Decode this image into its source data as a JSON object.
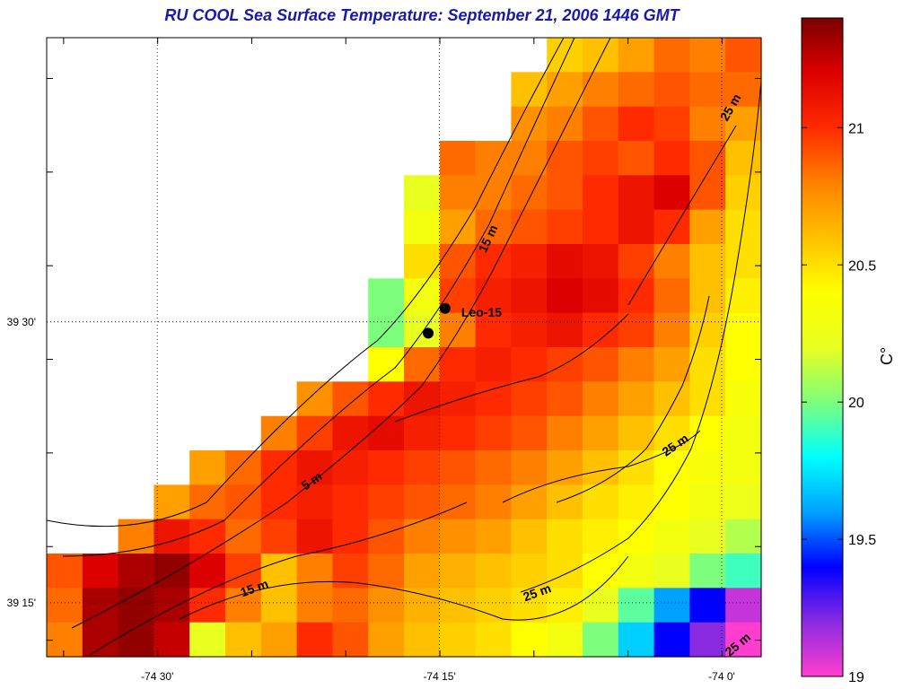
{
  "title": "RU COOL  Sea Surface Temperature:  September 21, 2006 1446 GMT",
  "colors": {
    "title": "#1a1aa8"
  },
  "chart_data": {
    "type": "heatmap",
    "title": "RU COOL  Sea Surface Temperature:  September 21, 2006 1446 GMT",
    "xlabel": "",
    "ylabel": "",
    "xlim": [
      -74.598,
      -73.965
    ],
    "ylim": [
      39.202,
      39.753
    ],
    "x_ticks": [
      {
        "value": -74.5,
        "label": "-74 30'"
      },
      {
        "value": -74.25,
        "label": "-74 15'"
      },
      {
        "value": -74.0,
        "label": "-74 0'"
      }
    ],
    "y_ticks": [
      {
        "value": 39.5,
        "label": "39 30'"
      },
      {
        "value": 39.25,
        "label": "39 15'"
      }
    ],
    "grid": "dotted at major ticks",
    "colorbar": {
      "label": "C°",
      "range": [
        19,
        21.4
      ],
      "ticks": [
        "19",
        "19.5",
        "20",
        "20.5",
        "21"
      ],
      "tick_values": [
        19,
        19.5,
        20,
        20.5,
        21
      ],
      "colormap": [
        "#ff3ecf",
        "#8a2be2",
        "#0000ff",
        "#00a2ff",
        "#00ffff",
        "#7dff7d",
        "#e8ff20",
        "#ffff00",
        "#ffc000",
        "#ff8000",
        "#ff2a00",
        "#dd0000",
        "#7a0000"
      ]
    },
    "sst_field": {
      "description": "Approximate gridded SST (deg C), 20 columns x 18 rows covering the map area; null = land/no data",
      "lon_edges": [
        -74.598,
        -73.965
      ],
      "lat_edges": [
        39.202,
        39.753
      ],
      "rows_north_to_south": [
        [
          null,
          null,
          null,
          null,
          null,
          null,
          null,
          null,
          null,
          null,
          null,
          null,
          null,
          null,
          20.55,
          20.6,
          20.7,
          20.85,
          20.8,
          20.9
        ],
        [
          null,
          null,
          null,
          null,
          null,
          null,
          null,
          null,
          null,
          null,
          null,
          null,
          null,
          20.6,
          20.7,
          20.8,
          20.85,
          20.9,
          20.85,
          20.85
        ],
        [
          null,
          null,
          null,
          null,
          null,
          null,
          null,
          null,
          null,
          null,
          null,
          null,
          null,
          20.75,
          20.8,
          20.9,
          21.0,
          20.95,
          20.8,
          20.7
        ],
        [
          null,
          null,
          null,
          null,
          null,
          null,
          null,
          null,
          null,
          null,
          null,
          20.85,
          20.8,
          20.8,
          20.9,
          20.95,
          20.9,
          21.0,
          20.9,
          20.6
        ],
        [
          null,
          null,
          null,
          null,
          null,
          null,
          null,
          null,
          null,
          null,
          20.2,
          20.8,
          20.8,
          20.85,
          20.9,
          21.0,
          21.1,
          21.2,
          20.9,
          20.55
        ],
        [
          null,
          null,
          null,
          null,
          null,
          null,
          null,
          null,
          null,
          null,
          20.3,
          20.7,
          20.85,
          20.9,
          20.95,
          21.0,
          21.1,
          21.0,
          20.7,
          20.5
        ],
        [
          null,
          null,
          null,
          null,
          null,
          null,
          null,
          null,
          null,
          null,
          20.5,
          20.9,
          21.0,
          21.05,
          21.15,
          21.1,
          20.95,
          20.8,
          20.6,
          20.5
        ],
        [
          null,
          null,
          null,
          null,
          null,
          null,
          null,
          null,
          null,
          20.0,
          20.3,
          20.95,
          21.05,
          21.1,
          21.2,
          21.15,
          21.0,
          20.85,
          20.6,
          20.45
        ],
        [
          null,
          null,
          null,
          null,
          null,
          null,
          null,
          null,
          null,
          20.0,
          20.2,
          20.8,
          21.0,
          21.05,
          21.1,
          21.0,
          20.95,
          20.8,
          20.55,
          20.4
        ],
        [
          null,
          null,
          null,
          null,
          null,
          null,
          null,
          null,
          null,
          20.4,
          20.85,
          21.0,
          21.05,
          21.0,
          20.95,
          20.9,
          20.8,
          20.7,
          20.5,
          20.4
        ],
        [
          null,
          null,
          null,
          null,
          null,
          null,
          null,
          20.75,
          20.9,
          21.0,
          21.1,
          21.05,
          21.0,
          20.95,
          20.9,
          20.8,
          20.7,
          20.6,
          20.5,
          20.35
        ],
        [
          null,
          null,
          null,
          null,
          null,
          null,
          20.8,
          20.95,
          21.1,
          21.15,
          21.05,
          21.0,
          20.95,
          20.9,
          20.8,
          20.7,
          20.6,
          20.5,
          20.4,
          20.3
        ],
        [
          null,
          null,
          null,
          null,
          20.7,
          20.85,
          21.0,
          21.1,
          21.05,
          21.0,
          20.95,
          20.9,
          20.85,
          20.8,
          20.7,
          20.6,
          20.5,
          20.4,
          20.35,
          20.3
        ],
        [
          null,
          null,
          null,
          20.7,
          20.85,
          20.9,
          21.0,
          21.05,
          21.0,
          20.95,
          20.9,
          20.85,
          20.8,
          20.7,
          20.6,
          20.5,
          20.45,
          20.4,
          20.3,
          20.25
        ],
        [
          null,
          null,
          20.8,
          21.1,
          21.0,
          20.85,
          20.95,
          21.1,
          21.0,
          20.9,
          20.8,
          20.75,
          20.7,
          20.6,
          20.5,
          20.45,
          20.4,
          20.3,
          20.2,
          20.1
        ],
        [
          20.9,
          21.2,
          21.3,
          21.35,
          21.2,
          20.95,
          20.6,
          20.8,
          20.95,
          20.85,
          20.7,
          20.65,
          20.6,
          20.55,
          20.5,
          20.4,
          20.3,
          20.2,
          20.0,
          19.9
        ],
        [
          20.85,
          21.3,
          21.35,
          21.3,
          21.0,
          20.8,
          20.6,
          20.8,
          20.85,
          20.75,
          20.65,
          20.6,
          20.55,
          20.5,
          20.45,
          20.2,
          19.95,
          19.6,
          19.4,
          19.1
        ],
        [
          20.8,
          21.3,
          21.35,
          21.25,
          20.2,
          20.6,
          20.7,
          21.0,
          20.9,
          20.7,
          20.6,
          20.55,
          20.5,
          20.4,
          20.3,
          20.0,
          19.7,
          19.4,
          19.2,
          19.0
        ]
      ]
    },
    "contour_labels": [
      "5 m",
      "15 m",
      "15 m",
      "25 m",
      "25 m",
      "25 m",
      "25 m"
    ],
    "station": {
      "label": "Leo-15",
      "points": [
        {
          "lon": -74.245,
          "lat": 39.512
        },
        {
          "lon": -74.26,
          "lat": 39.49
        }
      ]
    }
  }
}
